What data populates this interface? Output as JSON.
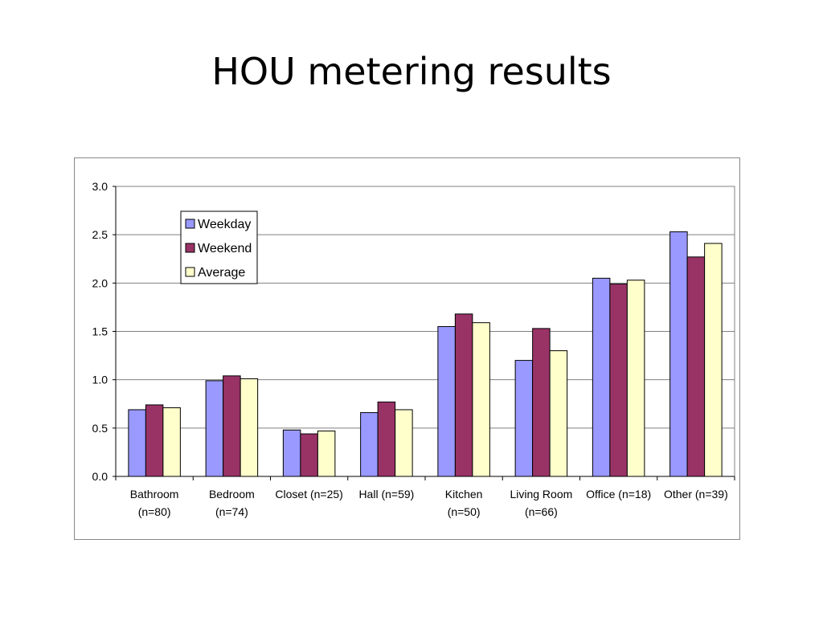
{
  "slide": {
    "title": "HOU metering results"
  },
  "chart_data": {
    "type": "bar",
    "categories": [
      [
        "Bathroom",
        "(n=80)"
      ],
      [
        "Bedroom",
        "(n=74)"
      ],
      [
        "Closet (n=25)"
      ],
      [
        "Hall (n=59)"
      ],
      [
        "Kitchen",
        "(n=50)"
      ],
      [
        "Living Room",
        "(n=66)"
      ],
      [
        "Office (n=18)"
      ],
      [
        "Other (n=39)"
      ]
    ],
    "series": [
      {
        "name": "Weekday",
        "color": "#9999FF",
        "values": [
          0.69,
          0.99,
          0.48,
          0.66,
          1.55,
          1.2,
          2.05,
          2.53
        ]
      },
      {
        "name": "Weekend",
        "color": "#993366",
        "values": [
          0.74,
          1.04,
          0.44,
          0.77,
          1.68,
          1.53,
          1.99,
          2.27
        ]
      },
      {
        "name": "Average",
        "color": "#FFFFCC",
        "values": [
          0.71,
          1.01,
          0.47,
          0.69,
          1.59,
          1.3,
          2.03,
          2.41
        ]
      }
    ],
    "ylim": [
      0,
      3.0
    ],
    "yticks": [
      "0.0",
      "0.5",
      "1.0",
      "1.5",
      "2.0",
      "2.5",
      "3.0"
    ],
    "grid": true,
    "legend_position": "top-left"
  }
}
